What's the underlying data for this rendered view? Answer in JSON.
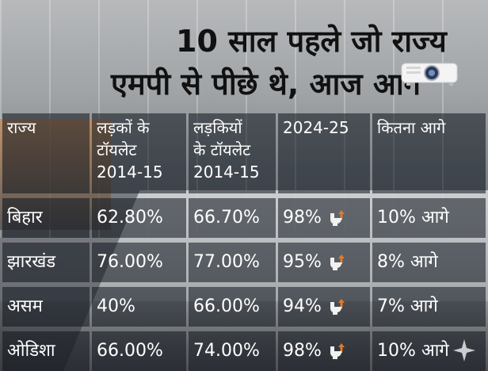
{
  "headline": {
    "line1": "10 साल पहले जो राज्य",
    "line2": "एमपी से पीछे थे, आज आगे"
  },
  "chart_data": {
    "type": "table",
    "columns": [
      "राज्य",
      "लड़कों के टॉयलेट 2014-15",
      "लड़कियों के टॉयलेट 2014-15",
      "2024-25",
      "कितना आगे"
    ],
    "header_lines": [
      [
        "राज्य"
      ],
      [
        "लड़कों के",
        "टॉयलेट",
        "2014-15"
      ],
      [
        "लड़कियों",
        "के टॉयलेट",
        "2014-15"
      ],
      [
        "2024-25"
      ],
      [
        "कितना आगे"
      ]
    ],
    "rows": [
      {
        "state": "बिहार",
        "boys_2014_15": "62.80%",
        "girls_2014_15": "66.70%",
        "y2024_25": "98%",
        "ahead": "10% आगे"
      },
      {
        "state": "झारखंड",
        "boys_2014_15": "76.00%",
        "girls_2014_15": "77.00%",
        "y2024_25": "95%",
        "ahead": "8% आगे"
      },
      {
        "state": "असम",
        "boys_2014_15": "40%",
        "girls_2014_15": "66.00%",
        "y2024_25": "94%",
        "ahead": "7% आगे"
      },
      {
        "state": "ओडिशा",
        "boys_2014_15": "66.00%",
        "girls_2014_15": "74.00%",
        "y2024_25": "98%",
        "ahead": "10% आगे"
      }
    ]
  },
  "colors": {
    "cell_bg": "rgba(15,20,30,0.55)",
    "text": "#ffffff",
    "headline": "#111111",
    "toilet_icon": "#f1f1f1",
    "up_arrow": "#e07a2c"
  },
  "icons": [
    "toilet-up-icon",
    "projector-icon",
    "sparkle-icon"
  ]
}
